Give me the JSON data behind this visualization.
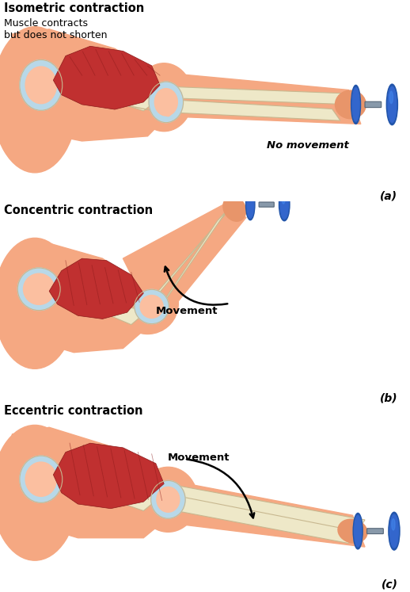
{
  "background_color": "#ffffff",
  "skin_color": "#F5A882",
  "skin_dark": "#E8956A",
  "skin_light": "#FBBFA0",
  "bone_color": "#EEE8C8",
  "bone_outline": "#C8B890",
  "muscle_color": "#C03030",
  "muscle_dark": "#8B1A1A",
  "muscle_light": "#D04040",
  "joint_color": "#B8D8E8",
  "joint_outline": "#90B8D0",
  "dumbbell_blue": "#2255AA",
  "dumbbell_mid": "#3366CC",
  "dumbbell_light": "#4488EE",
  "bar_color": "#8899AA",
  "title_a": "Isometric contraction",
  "subtitle_a": "Muscle contracts\nbut does not shorten",
  "title_b": "Concentric contraction",
  "title_c": "Eccentric contraction",
  "label_a": "(a)",
  "label_b": "(b)",
  "label_c": "(c)",
  "no_movement_text": "No movement",
  "movement_text": "Movement"
}
